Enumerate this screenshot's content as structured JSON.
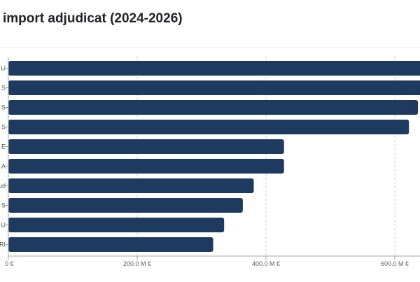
{
  "chart_data": {
    "type": "bar",
    "orientation": "horizontal",
    "title": "import adjudicat (2024-2026)",
    "categories": [
      "U",
      "S",
      "S",
      "S",
      "E",
      "A",
      "ud",
      "S",
      "U",
      "RI"
    ],
    "values": [
      660,
      650,
      636,
      622,
      428,
      428,
      381,
      364,
      335,
      318
    ],
    "unit": "M €",
    "xlabel": "",
    "ylabel": "",
    "xlim": [
      0,
      640
    ],
    "xticks": [
      0,
      200,
      400,
      600
    ],
    "xtick_labels": [
      "0 €",
      "200.0 M €",
      "400.0 M €",
      "600.0 M €"
    ],
    "grid": true,
    "bar_color": "#1f3a5f"
  }
}
